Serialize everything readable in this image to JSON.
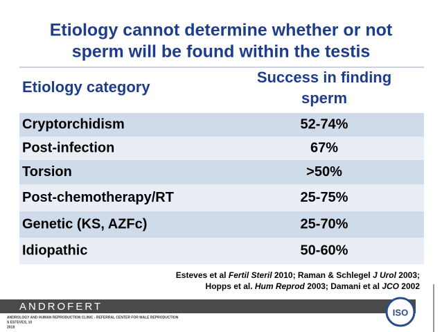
{
  "title": [
    "Etiology cannot determine whether or not",
    "sperm will be found within the testis"
  ],
  "table": {
    "header": [
      "Etiology category",
      [
        "Success in finding",
        "sperm"
      ]
    ],
    "rows": [
      [
        "Cryptorchidism",
        "52-74%"
      ],
      [
        "Post-infection",
        "67%"
      ],
      [
        "Torsion",
        ">50%"
      ],
      [
        "Post-chemotherapy/RT",
        "25-75%"
      ],
      [
        "Genetic (KS, AZFc)",
        "25-70%"
      ],
      [
        "Idiopathic",
        "50-60%"
      ]
    ]
  },
  "citation": [
    [
      {
        "text": "Esteves et al ",
        "italic": false
      },
      {
        "text": "Fertil Steril",
        "italic": true
      },
      {
        "text": " 2010;  Raman & Schlegel ",
        "italic": false
      },
      {
        "text": "J Urol",
        "italic": true
      },
      {
        "text": " 2003;",
        "italic": false
      }
    ],
    [
      {
        "text": "Hopps et al. ",
        "italic": false
      },
      {
        "text": "Hum Reprod",
        "italic": true
      },
      {
        "text": " 2003; Damani et al ",
        "italic": false
      },
      {
        "text": "JCO",
        "italic": true
      },
      {
        "text": " 2002",
        "italic": false
      }
    ]
  ],
  "footer": {
    "brand": "ANDROFERT",
    "lines": [
      "ANDROLOGY AND HUMAN REPRODUCTION CLINIC - REFERRAL CENTER FOR MALE REPRODUCTION",
      "S ESTEVES, 10",
      "2018"
    ],
    "logo": "ISO"
  }
}
